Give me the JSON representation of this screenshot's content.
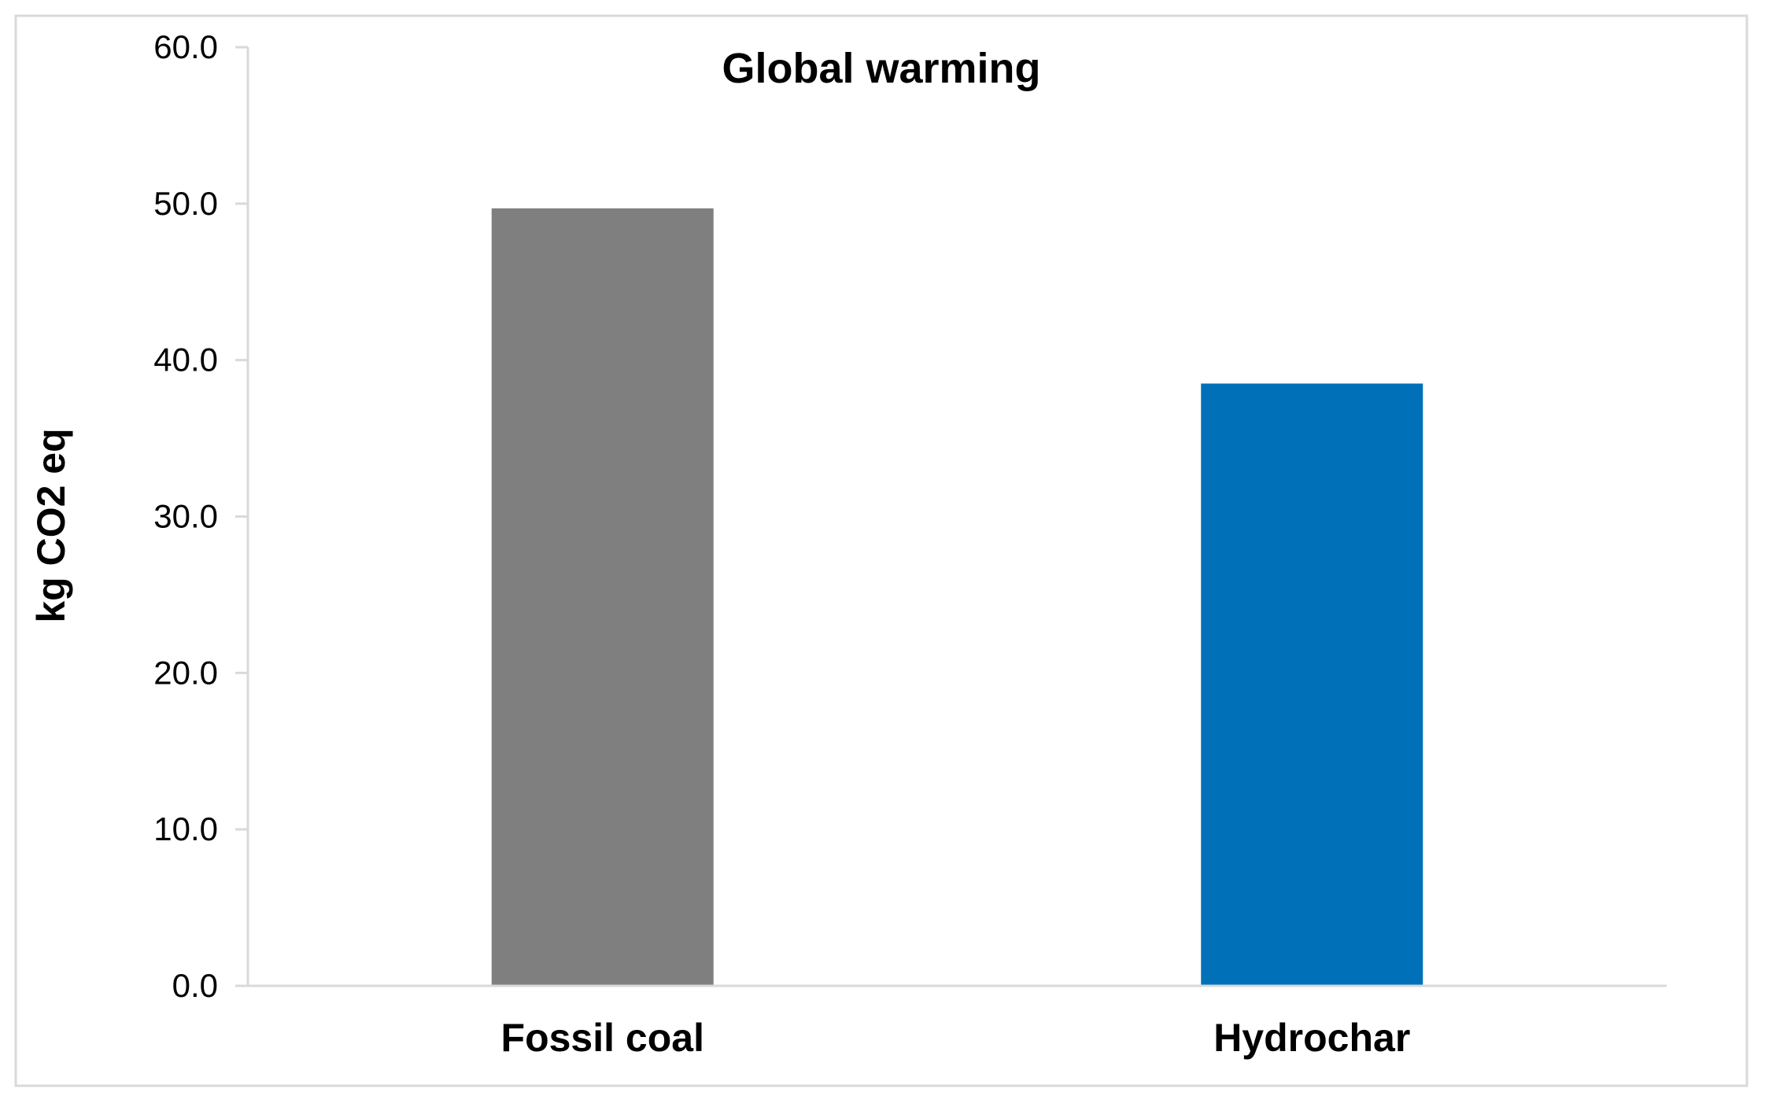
{
  "chart_data": {
    "type": "bar",
    "title": "Global warming",
    "xlabel": "",
    "ylabel": "kg CO2 eq",
    "categories": [
      "Fossil coal",
      "Hydrochar"
    ],
    "values": [
      49.7,
      38.5
    ],
    "ylim": [
      0,
      60
    ],
    "yticks": [
      0,
      10,
      20,
      30,
      40,
      50,
      60
    ],
    "ytick_labels": [
      "0.0",
      "10.0",
      "20.0",
      "30.0",
      "40.0",
      "50.0",
      "60.0"
    ],
    "grid": false,
    "legend": "none",
    "colors": {
      "bars": [
        "#7f7f7f",
        "#0070b8"
      ],
      "axis": "#d9d9d9",
      "frame": "#d9d9d9"
    }
  }
}
